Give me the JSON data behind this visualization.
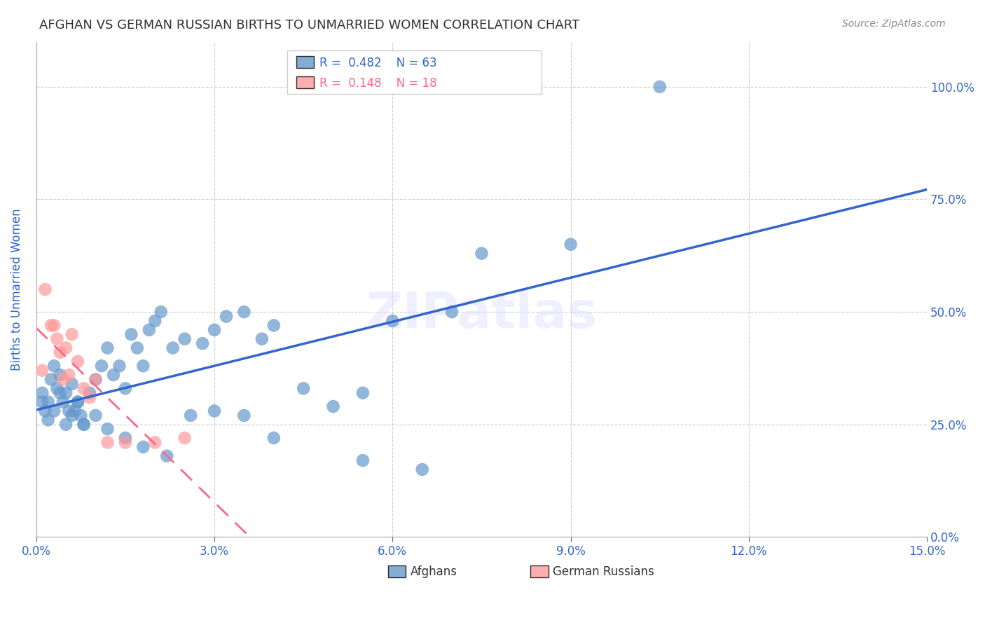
{
  "title": "AFGHAN VS GERMAN RUSSIAN BIRTHS TO UNMARRIED WOMEN CORRELATION CHART",
  "source": "Source: ZipAtlas.com",
  "ylabel": "Births to Unmarried Women",
  "xlim": [
    0.0,
    15.0
  ],
  "ylim": [
    0.0,
    110.0
  ],
  "yticks": [
    0,
    25,
    50,
    75,
    100
  ],
  "xticks": [
    0,
    3,
    6,
    9,
    12,
    15
  ],
  "afghan_R": 0.482,
  "afghan_N": 63,
  "german_russian_R": 0.148,
  "german_russian_N": 18,
  "legend_labels": [
    "Afghans",
    "German Russians"
  ],
  "afghan_color": "#6699CC",
  "german_russian_color": "#FF9999",
  "afghan_line_color": "#3366CC",
  "german_russian_line_color": "#FF6688",
  "watermark": "ZIPatlas",
  "background_color": "#FFFFFF",
  "grid_color": "#CCCCCC",
  "title_color": "#333333",
  "axis_label_color": "#3366CC",
  "tick_label_color": "#3366CC",
  "afghan_scatter_x": [
    0.1,
    0.15,
    0.2,
    0.25,
    0.3,
    0.35,
    0.4,
    0.45,
    0.5,
    0.55,
    0.6,
    0.65,
    0.7,
    0.75,
    0.8,
    0.9,
    1.0,
    1.1,
    1.2,
    1.3,
    1.4,
    1.5,
    1.6,
    1.7,
    1.8,
    1.9,
    2.0,
    2.1,
    2.3,
    2.5,
    2.8,
    3.0,
    3.2,
    3.5,
    3.8,
    4.0,
    4.5,
    5.0,
    5.5,
    6.0,
    0.1,
    0.2,
    0.3,
    0.4,
    0.5,
    0.6,
    0.7,
    0.8,
    1.0,
    1.2,
    1.5,
    1.8,
    2.2,
    2.6,
    3.0,
    3.5,
    4.0,
    5.5,
    6.5,
    7.0,
    7.5,
    9.0,
    10.5
  ],
  "afghan_scatter_y": [
    32,
    28,
    30,
    35,
    38,
    33,
    36,
    30,
    32,
    28,
    34,
    28,
    30,
    27,
    25,
    32,
    35,
    38,
    42,
    36,
    38,
    33,
    45,
    42,
    38,
    46,
    48,
    50,
    42,
    44,
    43,
    46,
    49,
    50,
    44,
    47,
    33,
    29,
    32,
    48,
    30,
    26,
    28,
    32,
    25,
    27,
    30,
    25,
    27,
    24,
    22,
    20,
    18,
    27,
    28,
    27,
    22,
    17,
    15,
    50,
    63,
    65,
    100
  ],
  "german_russian_scatter_x": [
    0.1,
    0.15,
    0.25,
    0.3,
    0.35,
    0.4,
    0.45,
    0.5,
    0.55,
    0.6,
    0.7,
    0.8,
    0.9,
    1.0,
    1.2,
    1.5,
    2.0,
    2.5
  ],
  "german_russian_scatter_y": [
    37,
    55,
    47,
    47,
    44,
    41,
    35,
    42,
    36,
    45,
    39,
    33,
    31,
    35,
    21,
    21,
    21,
    22
  ]
}
